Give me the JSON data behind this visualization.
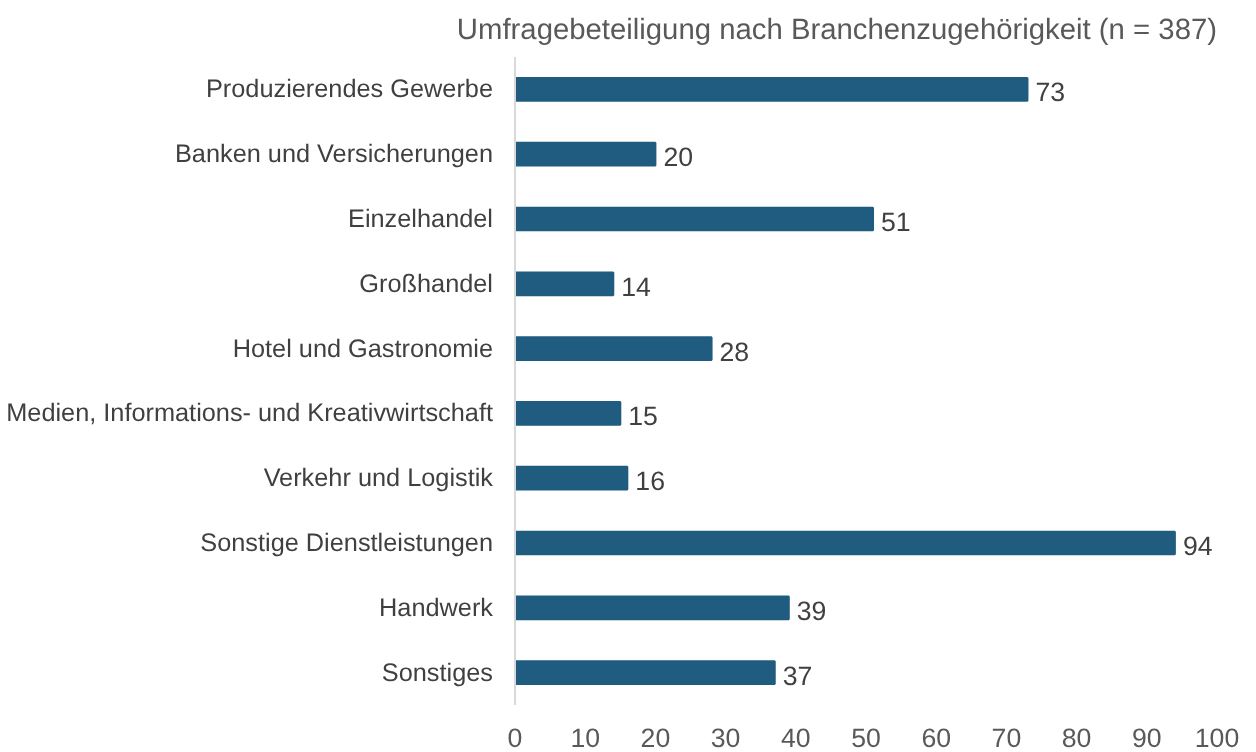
{
  "chart_data": {
    "type": "bar",
    "orientation": "horizontal",
    "title": "Umfragebeteiligung nach Branchenzugehörigkeit (n = 387)",
    "categories": [
      "Produzierendes Gewerbe",
      "Banken und Versicherungen",
      "Einzelhandel",
      "Großhandel",
      "Hotel und Gastronomie",
      "Medien, Informations- und Kreativwirtschaft",
      "Verkehr und Logistik",
      "Sonstige Dienstleistungen",
      "Handwerk",
      "Sonstiges"
    ],
    "values": [
      73,
      20,
      51,
      14,
      28,
      15,
      16,
      94,
      39,
      37
    ],
    "color": "#1f5c7f",
    "xlim": [
      0,
      100
    ],
    "xticks": [
      0,
      10,
      20,
      30,
      40,
      50,
      60,
      70,
      80,
      90,
      100
    ],
    "data_labels": true,
    "grid": false,
    "legend": false
  }
}
